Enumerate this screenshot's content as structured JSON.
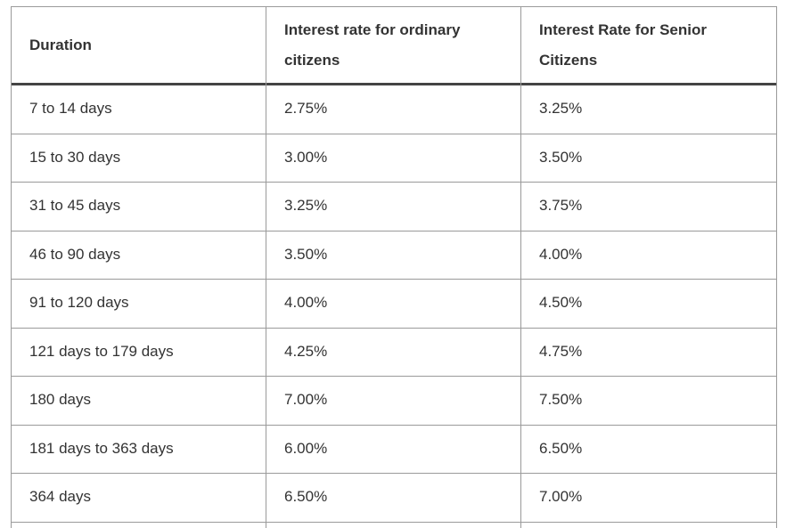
{
  "table": {
    "header": [
      "Duration",
      "Interest rate for ordinary citizens",
      "Interest Rate for Senior Citizens"
    ],
    "rows": [
      [
        "7 to 14 days",
        "2.75%",
        "3.25%"
      ],
      [
        "15 to 30 days",
        "3.00%",
        "3.50%"
      ],
      [
        "31 to 45 days",
        "3.25%",
        "3.75%"
      ],
      [
        "46 to 90 days",
        "3.50%",
        "4.00%"
      ],
      [
        "91 to 120 days",
        "4.00%",
        "4.50%"
      ],
      [
        "121 days to 179 days",
        "4.25%",
        "4.75%"
      ],
      [
        "180 days",
        "7.00%",
        "7.50%"
      ],
      [
        "181 days to 363 days",
        "6.00%",
        "6.50%"
      ],
      [
        "364 days",
        "6.50%",
        "7.00%"
      ]
    ]
  }
}
